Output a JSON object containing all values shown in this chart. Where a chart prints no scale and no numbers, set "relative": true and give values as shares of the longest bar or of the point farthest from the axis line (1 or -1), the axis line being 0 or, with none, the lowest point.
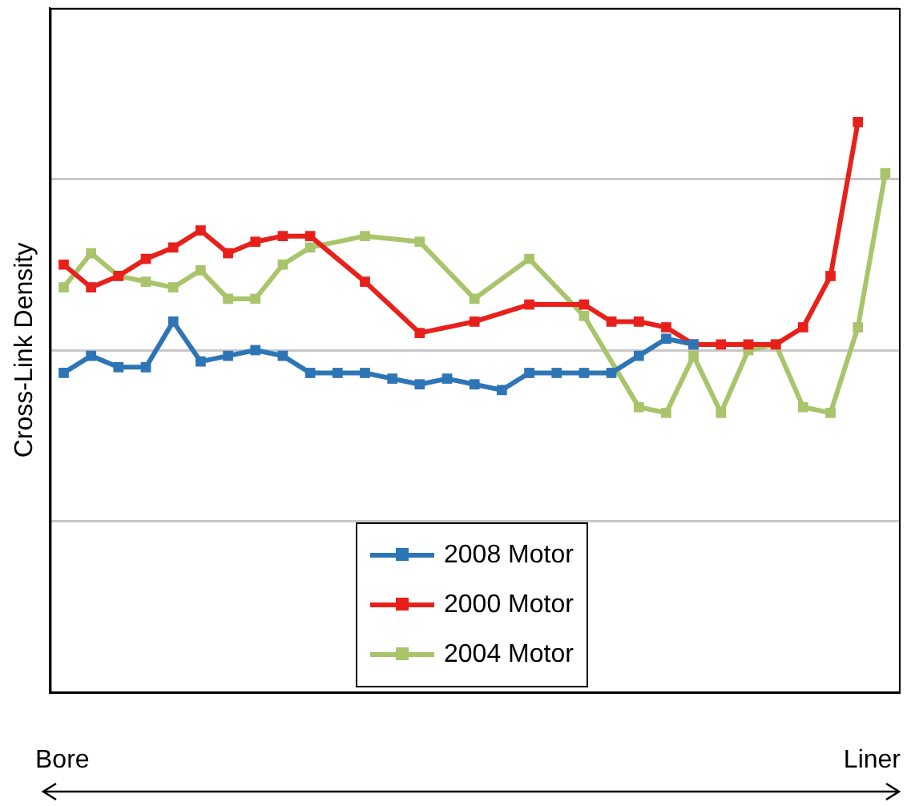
{
  "chart_data": {
    "type": "line",
    "ylabel": "Cross-Link Density",
    "relative": true,
    "grid": "y",
    "legend": "bottom",
    "marker": "square",
    "line_style": "solid",
    "categories": [
      null,
      null,
      null,
      null,
      null,
      null,
      null,
      null,
      null,
      null,
      null,
      null,
      null,
      null,
      null,
      null,
      null,
      null,
      null,
      null,
      null,
      null,
      null,
      null,
      null,
      null,
      null,
      null,
      null,
      null,
      null
    ],
    "series": [
      {
        "name": "2008 Motor",
        "color": "#2e75b6",
        "values": [
          0.56,
          0.59,
          0.57,
          0.57,
          0.65,
          0.58,
          0.59,
          0.6,
          0.59,
          0.56,
          0.56,
          0.56,
          0.55,
          0.54,
          0.55,
          0.54,
          0.53,
          0.56,
          0.56,
          0.56,
          0.56,
          0.59,
          0.62,
          0.61,
          null,
          null,
          null,
          null,
          null,
          null,
          null
        ]
      },
      {
        "name": "2000 Motor",
        "color": "#e8201c",
        "values": [
          0.75,
          0.71,
          0.73,
          0.76,
          0.78,
          0.81,
          0.77,
          0.79,
          0.8,
          0.8,
          null,
          0.72,
          null,
          0.63,
          null,
          0.65,
          null,
          0.68,
          null,
          0.68,
          0.65,
          0.65,
          0.64,
          0.61,
          0.61,
          0.61,
          0.61,
          0.64,
          0.73,
          1,
          null
        ]
      },
      {
        "name": "2004 Motor",
        "color": "#a9c46a",
        "values": [
          0.71,
          0.77,
          0.73,
          0.72,
          0.71,
          0.74,
          0.69,
          0.69,
          0.75,
          0.78,
          null,
          0.8,
          null,
          0.79,
          null,
          0.69,
          null,
          0.76,
          null,
          0.66,
          null,
          0.5,
          0.49,
          0.59,
          0.49,
          0.6,
          0.61,
          0.5,
          0.49,
          0.64,
          0.91
        ]
      }
    ],
    "annotations": [
      "Bore",
      "Liner"
    ]
  }
}
